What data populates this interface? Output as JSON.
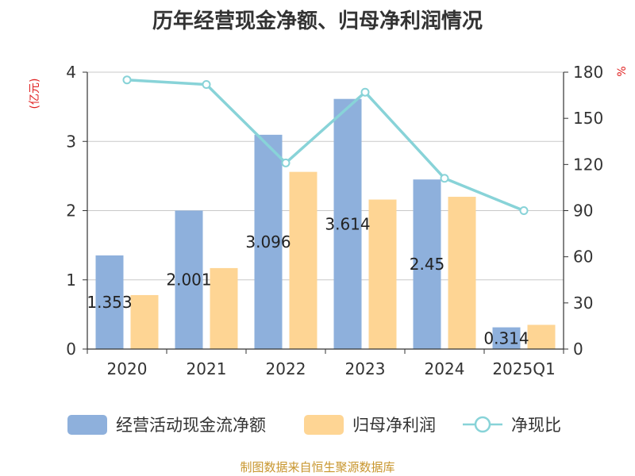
{
  "chart_data": {
    "type": "bar",
    "title": "历年经营现金净额、归母净利润情况",
    "categories": [
      "2020",
      "2021",
      "2022",
      "2023",
      "2024",
      "2025Q1"
    ],
    "series": [
      {
        "name": "经营活动现金流净额",
        "kind": "bar",
        "axis": "left",
        "values": [
          1.353,
          2.001,
          3.096,
          3.614,
          2.45,
          0.314
        ],
        "labels": [
          "1.353",
          "2.001",
          "3.096",
          "3.614",
          "2.45",
          "0.314"
        ]
      },
      {
        "name": "归母净利润",
        "kind": "bar",
        "axis": "left",
        "values": [
          0.78,
          1.17,
          2.56,
          2.16,
          2.2,
          0.35
        ]
      },
      {
        "name": "净现比",
        "kind": "line",
        "axis": "right",
        "values": [
          175,
          172,
          121,
          167,
          111,
          90
        ]
      }
    ],
    "ylabel": "(亿元)",
    "y2label": "%",
    "ylim": [
      0,
      4
    ],
    "y2lim": [
      0,
      180
    ],
    "yticks": [
      "0",
      "1",
      "2",
      "3",
      "4"
    ],
    "y2ticks": [
      "0",
      "30",
      "60",
      "90",
      "120",
      "150",
      "180"
    ],
    "grid": true,
    "legend": "bottom"
  },
  "source_note": "制图数据来自恒生聚源数据库",
  "colors": {
    "bar1": "#8eb0dc",
    "bar2": "#fed594",
    "line": "#88d3d8",
    "axis_label": "#e02020"
  }
}
